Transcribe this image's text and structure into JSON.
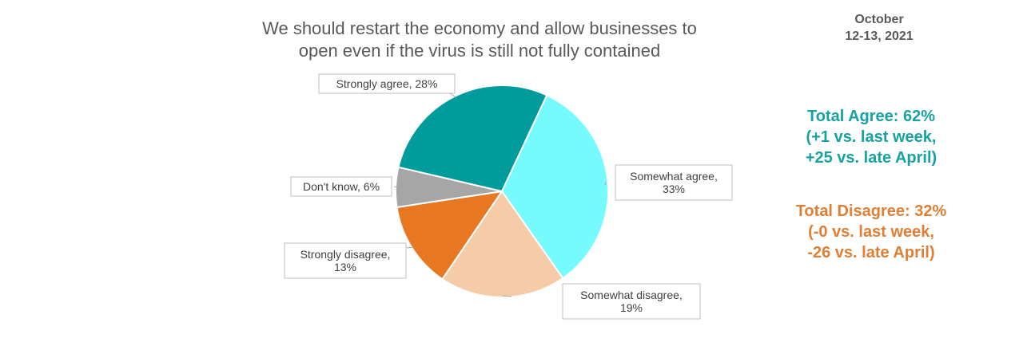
{
  "title_line1": "We should restart the economy and allow businesses to",
  "title_line2": "open even if the virus is still not fully contained",
  "date_line1": "October",
  "date_line2": "12-13, 2021",
  "agree_summary": {
    "color": "#17A2A2",
    "lines": [
      "Total Agree: 62%",
      "(+1 vs. last week,",
      "+25 vs. late April)"
    ]
  },
  "disagree_summary": {
    "color": "#E07E34",
    "lines": [
      "Total Disagree: 32%",
      "(-0 vs. last week,",
      "-26 vs. late April)"
    ]
  },
  "chart_data": {
    "type": "pie",
    "title": "We should restart the economy and allow businesses to open even if the virus is still not fully contained",
    "slices": [
      {
        "label": "Somewhat agree",
        "value": 33,
        "color": "#75FBFD",
        "label_lines": [
          "Somewhat agree,",
          "33%"
        ]
      },
      {
        "label": "Somewhat disagree",
        "value": 19,
        "color": "#F6CBA8",
        "label_lines": [
          "Somewhat disagree,",
          "19%"
        ]
      },
      {
        "label": "Strongly disagree",
        "value": 13,
        "color": "#E87722",
        "label_lines": [
          "Strongly disagree,",
          "13%"
        ]
      },
      {
        "label": "Don't know",
        "value": 6,
        "color": "#A6A6A6",
        "label_lines": [
          "Don't know, 6%"
        ]
      },
      {
        "label": "Strongly agree",
        "value": 28,
        "color": "#009C9C",
        "label_lines": [
          "Strongly agree, 28%"
        ]
      }
    ]
  }
}
